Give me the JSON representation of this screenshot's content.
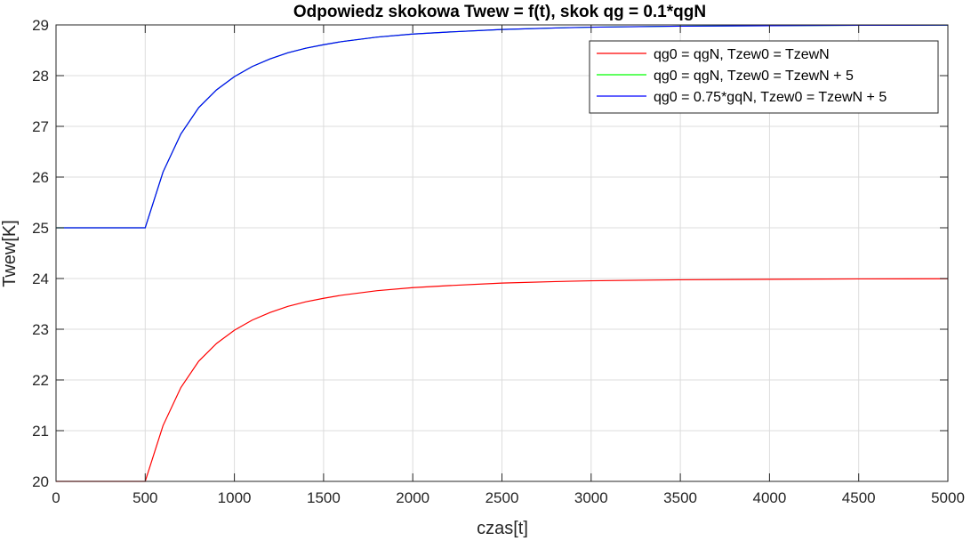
{
  "chart_data": {
    "type": "line",
    "title": "Odpowiedz skokowa Twew = f(t), skok qg = 0.1*qgN",
    "xlabel": "czas[t]",
    "ylabel": "Twew[K]",
    "xlim": [
      0,
      5000
    ],
    "ylim": [
      20,
      29
    ],
    "xticks": [
      0,
      500,
      1000,
      1500,
      2000,
      2500,
      3000,
      3500,
      4000,
      4500,
      5000
    ],
    "yticks": [
      20,
      21,
      22,
      23,
      24,
      25,
      26,
      27,
      28,
      29
    ],
    "grid": true,
    "legend_position": "top-right",
    "series": [
      {
        "name": "qg0 = qgN, Tzew0 = TzewN",
        "color": "#ff0000",
        "x": [
          0,
          500,
          600,
          700,
          800,
          900,
          1000,
          1100,
          1200,
          1300,
          1400,
          1500,
          1600,
          1800,
          2000,
          2200,
          2500,
          2800,
          3000,
          3500,
          4000,
          4500,
          5000
        ],
        "y": [
          20,
          20,
          21.1,
          21.85,
          22.37,
          22.72,
          22.98,
          23.18,
          23.33,
          23.45,
          23.54,
          23.61,
          23.67,
          23.76,
          23.82,
          23.86,
          23.91,
          23.94,
          23.955,
          23.975,
          23.985,
          23.992,
          23.995
        ]
      },
      {
        "name": "qg0 = qgN, Tzew0 = TzewN + 5",
        "color": "#00ff00",
        "x": [
          0,
          500,
          600,
          700,
          800,
          900,
          1000,
          1100,
          1200,
          1300,
          1400,
          1500,
          1600,
          1800,
          2000,
          2200,
          2500,
          2800,
          3000,
          3500,
          4000,
          4500,
          5000
        ],
        "y": [
          25,
          25,
          26.1,
          26.85,
          27.37,
          27.72,
          27.98,
          28.18,
          28.33,
          28.45,
          28.54,
          28.61,
          28.67,
          28.76,
          28.82,
          28.86,
          28.91,
          28.94,
          28.955,
          28.975,
          28.985,
          28.992,
          28.995
        ]
      },
      {
        "name": "qg0 = 0.75*gqN, Tzew0 = TzewN + 5",
        "color": "#0000ff",
        "x": [
          0,
          500,
          600,
          700,
          800,
          900,
          1000,
          1100,
          1200,
          1300,
          1400,
          1500,
          1600,
          1800,
          2000,
          2200,
          2500,
          2800,
          3000,
          3500,
          4000,
          4500,
          5000
        ],
        "y": [
          25,
          25,
          26.1,
          26.85,
          27.37,
          27.72,
          27.98,
          28.18,
          28.33,
          28.45,
          28.54,
          28.61,
          28.67,
          28.76,
          28.82,
          28.86,
          28.91,
          28.94,
          28.955,
          28.975,
          28.985,
          28.992,
          28.995
        ]
      }
    ]
  }
}
